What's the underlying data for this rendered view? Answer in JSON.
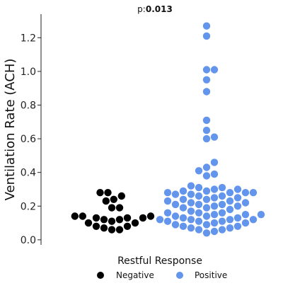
{
  "chart_data": {
    "type": "scatter",
    "subtype": "swarm",
    "annotation_prefix": "p:",
    "annotation_value": "0.013",
    "xlabel": "Restful Response",
    "ylabel": "Ventilation Rate (ACH)",
    "ylim": [
      -0.03,
      1.34
    ],
    "yticks": [
      "0.0",
      "0.2",
      "0.4",
      "0.6",
      "0.8",
      "1.0",
      "1.2"
    ],
    "legend": {
      "placement": "bottom-center"
    },
    "series": [
      {
        "name": "Negative",
        "color": "#000000",
        "values": [
          0.06,
          0.06,
          0.07,
          0.08,
          0.08,
          0.1,
          0.1,
          0.11,
          0.12,
          0.12,
          0.13,
          0.13,
          0.13,
          0.14,
          0.14,
          0.14,
          0.19,
          0.19,
          0.23,
          0.24,
          0.26,
          0.28,
          0.28
        ]
      },
      {
        "name": "Positive",
        "color": "#6495ed",
        "values": [
          0.04,
          0.05,
          0.06,
          0.06,
          0.07,
          0.07,
          0.08,
          0.08,
          0.09,
          0.09,
          0.1,
          0.1,
          0.11,
          0.11,
          0.11,
          0.12,
          0.12,
          0.12,
          0.12,
          0.13,
          0.13,
          0.14,
          0.14,
          0.15,
          0.15,
          0.15,
          0.16,
          0.16,
          0.16,
          0.17,
          0.18,
          0.19,
          0.19,
          0.2,
          0.2,
          0.21,
          0.21,
          0.21,
          0.22,
          0.22,
          0.23,
          0.23,
          0.24,
          0.24,
          0.25,
          0.25,
          0.26,
          0.26,
          0.27,
          0.27,
          0.28,
          0.28,
          0.28,
          0.28,
          0.29,
          0.29,
          0.3,
          0.3,
          0.31,
          0.31,
          0.32,
          0.38,
          0.39,
          0.41,
          0.43,
          0.46,
          0.6,
          0.61,
          0.65,
          0.71,
          0.88,
          0.95,
          1.01,
          1.01,
          1.21,
          1.27
        ]
      }
    ]
  }
}
